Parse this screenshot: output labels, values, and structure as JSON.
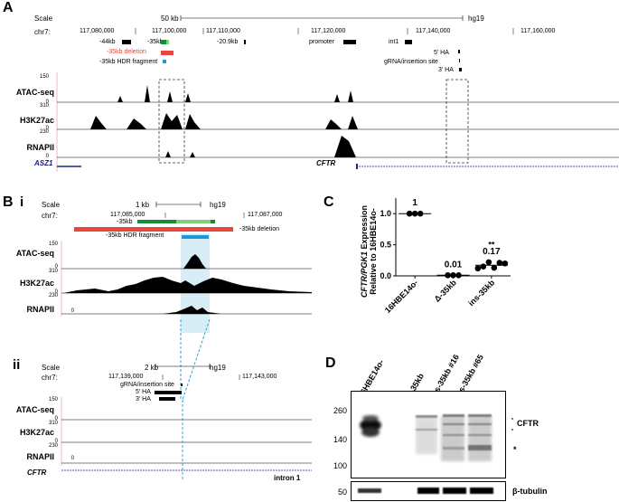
{
  "panels": {
    "A": {
      "letter": "A",
      "scale_label": "Scale",
      "scale_value": "50 kb",
      "assembly": "hg19",
      "chrom": "chr7:",
      "coords": [
        "117,080,000",
        "117,100,000",
        "117,110,000",
        "117,120,000",
        "117,140,000",
        "117,160,000"
      ],
      "features": {
        "m44kb": "-44kb",
        "m35kb": "-35kb",
        "m20kb": "-20.9kb",
        "promoter": "promoter",
        "int1": "int1",
        "ha5": "5' HA",
        "grna": "gRNA/insertion site",
        "ha3": "3' HA",
        "deletion": "-35kb deletion",
        "hdr": "-35kb HDR fragment"
      },
      "tracks": [
        {
          "label": "ATAC-seq",
          "max": "150",
          "min": "0"
        },
        {
          "label": "H3K27ac",
          "max": "310",
          "min": "0"
        },
        {
          "label": "RNAPII",
          "max": "230",
          "min": "0"
        }
      ],
      "genes": {
        "asz1": "ASZ1",
        "cftr": "CFTR"
      }
    },
    "B": {
      "letter": "B",
      "sub_i": "i",
      "sub_ii": "ii",
      "i": {
        "scale_label": "Scale",
        "scale_value": "1 kb",
        "assembly": "hg19",
        "chrom": "chr7:",
        "coords": [
          "117,085,000",
          "117,087,000"
        ],
        "feature_35kb": "-35kb",
        "hdr": "-35kb HDR fragment",
        "deletion": "-35kb deletion",
        "tracks": [
          {
            "label": "ATAC-seq",
            "max": "150",
            "min": "0"
          },
          {
            "label": "H3K27ac",
            "max": "310",
            "min": "0"
          },
          {
            "label": "RNAPII",
            "max": "230",
            "min": "0"
          }
        ]
      },
      "ii": {
        "scale_label": "Scale",
        "scale_value": "2 kb",
        "assembly": "hg19",
        "chrom": "chr7:",
        "coords": [
          "117,139,000",
          "117,143,000"
        ],
        "grna": "gRNA/insertion site",
        "ha5": "5' HA",
        "ha3": "3' HA",
        "tracks": [
          {
            "label": "ATAC-seq",
            "max": "150",
            "min": "0"
          },
          {
            "label": "H3K27ac",
            "max": "310",
            "min": "0"
          },
          {
            "label": "RNAPII",
            "max": "230",
            "min": "0"
          }
        ],
        "gene": "CFTR",
        "intron": "intron 1"
      }
    },
    "C": {
      "letter": "C",
      "ylabel_line1_italic": "CFTR/PGK1",
      "ylabel_line1_rest": " Expression",
      "ylabel_line2": "Relative to 16HBE14o-"
    },
    "D": {
      "letter": "D",
      "lanes": [
        "16HBE14o-",
        "Δ-35kb",
        "ins-35kb #16",
        "ins-35kb #65"
      ],
      "markers": [
        "260",
        "140",
        "100",
        "50"
      ],
      "cftr_label": "CFTR",
      "star": "*",
      "tubulin_label": "β-tubulin"
    }
  },
  "chart_data": {
    "type": "scatter",
    "categories": [
      "16HBE14o-",
      "Δ-35kb",
      "ins-35kb"
    ],
    "ylabel": "CFTR/PGK1 Expression Relative to 16HBE14o-",
    "ylim": [
      0,
      1.25
    ],
    "yticks": [
      "0.0",
      "0.5",
      "1.0"
    ],
    "series": [
      {
        "category": "16HBE14o-",
        "points": [
          1.0,
          1.0,
          1.0
        ],
        "mean": 1,
        "mean_label": "1",
        "significance": "****"
      },
      {
        "category": "Δ-35kb",
        "points": [
          0.01,
          0.01,
          0.01
        ],
        "mean": 0.01,
        "mean_label": "0.01",
        "significance": ""
      },
      {
        "category": "ins-35kb",
        "points": [
          0.12,
          0.15,
          0.22,
          0.13,
          0.21,
          0.2
        ],
        "mean": 0.17,
        "mean_label": "0.17",
        "significance": "**"
      }
    ]
  }
}
